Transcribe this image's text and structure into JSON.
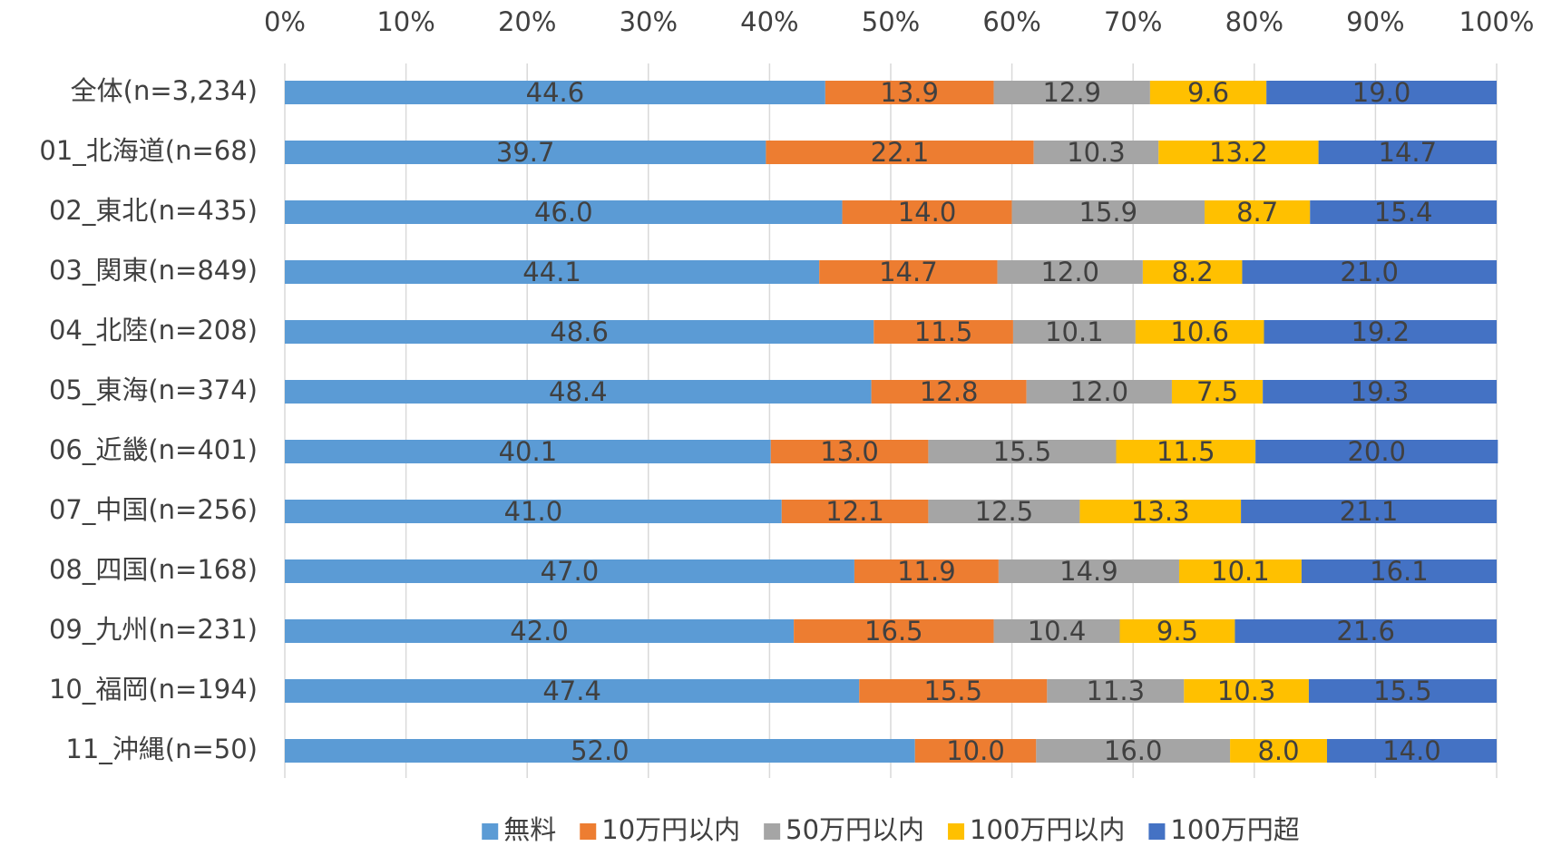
{
  "chart_data": {
    "type": "stacked_bar_horizontal",
    "categories": [
      "全体(n=3,234)",
      "01_北海道(n=68)",
      "02_東北(n=435)",
      "03_関東(n=849)",
      "04_北陸(n=208)",
      "05_東海(n=374)",
      "06_近畿(n=401)",
      "07_中国(n=256)",
      "08_四国(n=168)",
      "09_九州(n=231)",
      "10_福岡(n=194)",
      "11_沖縄(n=50)"
    ],
    "series": [
      {
        "name": "無料",
        "color": "#5b9bd5",
        "values": [
          44.6,
          39.7,
          46.0,
          44.1,
          48.6,
          48.4,
          40.1,
          41.0,
          47.0,
          42.0,
          47.4,
          52.0
        ],
        "value_labels": [
          "44.6",
          "39.7",
          "46.0",
          "44.1",
          "48.6",
          "48.4",
          "40.1",
          "41.0",
          "47.0",
          "42.0",
          "47.4",
          "52.0"
        ]
      },
      {
        "name": "10万円以内",
        "color": "#ed7d31",
        "values": [
          13.9,
          22.1,
          14.0,
          14.7,
          11.5,
          12.8,
          13.0,
          12.1,
          11.9,
          16.5,
          15.5,
          10.0
        ],
        "value_labels": [
          "13.9",
          "22.1",
          "14.0",
          "14.7",
          "11.5",
          "12.8",
          "13.0",
          "12.1",
          "11.9",
          "16.5",
          "15.5",
          "10.0"
        ]
      },
      {
        "name": "50万円以内",
        "color": "#a5a5a5",
        "values": [
          12.9,
          10.3,
          15.9,
          12.0,
          10.1,
          12.0,
          15.5,
          12.5,
          14.9,
          10.4,
          11.3,
          16.0
        ],
        "value_labels": [
          "12.9",
          "10.3",
          "15.9",
          "12.0",
          "10.1",
          "12.0",
          "15.5",
          "12.5",
          "14.9",
          "10.4",
          "11.3",
          "16.0"
        ]
      },
      {
        "name": "100万円以内",
        "color": "#ffc000",
        "values": [
          9.6,
          13.2,
          8.7,
          8.2,
          10.6,
          7.5,
          11.5,
          13.3,
          10.1,
          9.5,
          10.3,
          8.0
        ],
        "value_labels": [
          "9.6",
          "13.2",
          "8.7",
          "8.2",
          "10.6",
          "7.5",
          "11.5",
          "13.3",
          "10.1",
          "9.5",
          "10.3",
          "8.0"
        ]
      },
      {
        "name": "100万円超",
        "color": "#4472c4",
        "values": [
          19.0,
          14.7,
          15.4,
          21.0,
          19.2,
          19.3,
          20.0,
          21.1,
          16.1,
          21.6,
          15.5,
          14.0
        ],
        "value_labels": [
          "19.0",
          "14.7",
          "15.4",
          "21.0",
          "19.2",
          "19.3",
          "20.0",
          "21.1",
          "16.1",
          "21.6",
          "15.5",
          "14.0"
        ]
      }
    ],
    "xlim": [
      0,
      100
    ],
    "xticks": [
      {
        "value": 0,
        "label": "0%"
      },
      {
        "value": 10,
        "label": "10%"
      },
      {
        "value": 20,
        "label": "20%"
      },
      {
        "value": 30,
        "label": "30%"
      },
      {
        "value": 40,
        "label": "40%"
      },
      {
        "value": 50,
        "label": "50%"
      },
      {
        "value": 60,
        "label": "60%"
      },
      {
        "value": 70,
        "label": "70%"
      },
      {
        "value": 80,
        "label": "80%"
      },
      {
        "value": 90,
        "label": "90%"
      },
      {
        "value": 100,
        "label": "100%"
      }
    ],
    "grid": true,
    "legend": "bottom"
  }
}
